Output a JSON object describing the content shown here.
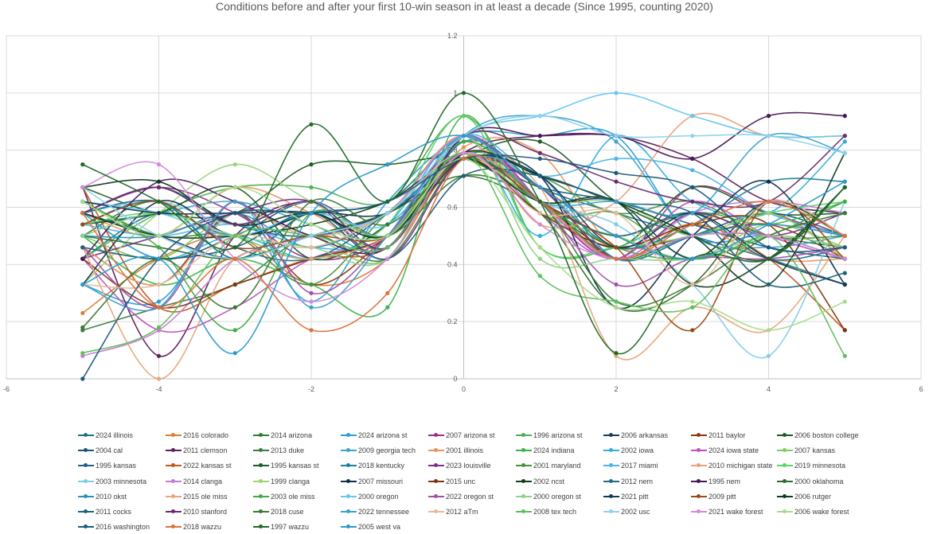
{
  "chart_data": {
    "type": "line",
    "title": "Conditions before and after your first 10-win season in at least a decade (Since 1995, counting 2020)",
    "xlabel": "",
    "ylabel": "",
    "xlim": [
      -6,
      6
    ],
    "ylim": [
      0,
      1.2
    ],
    "x_ticks": [
      "-6",
      "-4",
      "-2",
      "0",
      "2",
      "4",
      "6"
    ],
    "y_ticks": [
      "0",
      "0.2",
      "0.4",
      "0.6",
      "0.8",
      "1",
      "1.2"
    ],
    "x": [
      -5,
      -4,
      -3,
      -2,
      -1,
      0,
      1,
      2,
      3,
      4,
      5
    ],
    "grid": true,
    "smooth": true,
    "legend_position": "bottom",
    "series": [
      {
        "name": "2024 illinois",
        "color": "#1f6f8b",
        "values": [
          0.42,
          0.58,
          0.5,
          0.58,
          0.62,
          0.83,
          0.67,
          0.58,
          0.5,
          0.42,
          0.33
        ]
      },
      {
        "name": "2016 colorado",
        "color": "#e07b39",
        "values": [
          0.23,
          0.42,
          0.5,
          0.33,
          0.42,
          0.79,
          0.67,
          0.5,
          0.42,
          0.58,
          0.42
        ]
      },
      {
        "name": "2014 arizona",
        "color": "#2e7d32",
        "values": [
          0.5,
          0.62,
          0.42,
          0.58,
          0.5,
          0.71,
          0.62,
          0.42,
          0.5,
          0.5,
          0.42
        ]
      },
      {
        "name": "2024 arizona st",
        "color": "#2a9fd6",
        "values": [
          0.33,
          0.27,
          0.58,
          0.27,
          0.62,
          0.85,
          0.85,
          0.85,
          0.5,
          0.5,
          0.42
        ]
      },
      {
        "name": "2007 arizona st",
        "color": "#9c2e8f",
        "values": [
          0.58,
          0.67,
          0.58,
          0.42,
          0.5,
          0.85,
          0.62,
          0.42,
          0.67,
          0.58,
          0.5
        ]
      },
      {
        "name": "1996 arizona st",
        "color": "#4caf50",
        "values": [
          0.42,
          0.58,
          0.67,
          0.67,
          0.62,
          0.92,
          0.58,
          0.58,
          0.42,
          0.5,
          0.46
        ]
      },
      {
        "name": "2006 arkansas",
        "color": "#1a3d5c",
        "values": [
          0.58,
          0.5,
          0.42,
          0.5,
          0.58,
          0.77,
          0.62,
          0.62,
          0.42,
          0.62,
          0.5
        ]
      },
      {
        "name": "2011 baylor",
        "color": "#8b3a0e",
        "values": [
          0.46,
          0.33,
          0.58,
          0.33,
          0.5,
          0.77,
          0.62,
          0.46,
          0.5,
          0.54,
          0.42
        ]
      },
      {
        "name": "2006 boston college",
        "color": "#1b5e20",
        "values": [
          0.67,
          0.58,
          0.58,
          0.75,
          0.75,
          0.77,
          0.62,
          0.46,
          0.67,
          0.58,
          0.58
        ]
      },
      {
        "name": "2004 cal",
        "color": "#155a75",
        "values": [
          0.58,
          0.42,
          0.5,
          0.62,
          0.5,
          0.77,
          0.67,
          0.42,
          0.5,
          0.58,
          0.5
        ]
      },
      {
        "name": "2011 clemson",
        "color": "#5e1f5a",
        "values": [
          0.67,
          0.08,
          0.5,
          0.62,
          0.5,
          0.79,
          0.85,
          0.85,
          0.77,
          0.62,
          0.58
        ]
      },
      {
        "name": "2013 duke",
        "color": "#3c7a3f",
        "values": [
          0.17,
          0.25,
          0.33,
          0.5,
          0.42,
          0.77,
          0.62,
          0.5,
          0.58,
          0.5,
          0.46
        ]
      },
      {
        "name": "2009 georgia tech",
        "color": "#3da3c9",
        "values": [
          0.54,
          0.58,
          0.62,
          0.54,
          0.46,
          0.85,
          0.92,
          0.83,
          0.5,
          0.46,
          0.5
        ]
      },
      {
        "name": "2001 illinois",
        "color": "#e8935a",
        "values": [
          0.58,
          0.5,
          0.67,
          0.58,
          0.46,
          0.81,
          0.79,
          0.46,
          0.54,
          0.42,
          0.42
        ]
      },
      {
        "name": "2024 indiana",
        "color": "#3bb54a",
        "values": [
          0.5,
          0.33,
          0.42,
          0.33,
          0.25,
          0.92,
          0.46,
          0.46,
          0.58,
          0.54,
          0.62
        ]
      },
      {
        "name": "2002 iowa",
        "color": "#2eaee0",
        "values": [
          0.58,
          0.42,
          0.5,
          0.42,
          0.54,
          0.85,
          0.5,
          0.85,
          0.62,
          0.58,
          0.83
        ]
      },
      {
        "name": "2024 iowa state",
        "color": "#c04fc0",
        "values": [
          0.42,
          0.17,
          0.25,
          0.42,
          0.5,
          0.79,
          0.58,
          0.42,
          0.62,
          0.5,
          0.42
        ]
      },
      {
        "name": "2007 kansas",
        "color": "#7cce5a",
        "values": [
          0.5,
          0.42,
          0.58,
          0.5,
          0.42,
          0.85,
          0.58,
          0.5,
          0.42,
          0.54,
          0.46
        ]
      },
      {
        "name": "1995 kansas",
        "color": "#20607e",
        "values": [
          0.58,
          0.67,
          0.54,
          0.5,
          0.58,
          0.77,
          0.67,
          0.62,
          0.54,
          0.46,
          0.42
        ]
      },
      {
        "name": "2022 kansas st",
        "color": "#c0591e",
        "values": [
          0.67,
          0.25,
          0.33,
          0.42,
          0.46,
          0.77,
          0.67,
          0.42,
          0.54,
          0.42,
          0.17
        ]
      },
      {
        "name": "1995 kansas st",
        "color": "#1e5a2a",
        "values": [
          0.54,
          0.58,
          0.67,
          0.42,
          0.54,
          0.77,
          0.83,
          0.62,
          0.5,
          0.42,
          0.67
        ]
      },
      {
        "name": "2018 kentucky",
        "color": "#1b7f9c",
        "values": [
          0.54,
          0.62,
          0.42,
          0.58,
          0.46,
          0.83,
          0.67,
          0.46,
          0.54,
          0.69,
          0.69
        ]
      },
      {
        "name": "2023 louisville",
        "color": "#7a2f8a",
        "values": [
          0.42,
          0.5,
          0.58,
          0.62,
          0.42,
          0.77,
          0.67,
          0.42,
          0.58,
          0.5,
          0.58
        ]
      },
      {
        "name": "2001 maryland",
        "color": "#4a8f3a",
        "values": [
          0.62,
          0.5,
          0.5,
          0.33,
          0.58,
          0.79,
          0.71,
          0.58,
          0.62,
          0.5,
          0.5
        ]
      },
      {
        "name": "2017 miami",
        "color": "#4db2e6",
        "values": [
          0.54,
          0.5,
          0.54,
          0.46,
          0.5,
          0.85,
          0.71,
          0.77,
          0.73,
          0.58,
          0.5
        ]
      },
      {
        "name": "2010 michigan state",
        "color": "#e9a07a",
        "values": [
          0.46,
          0.33,
          0.58,
          0.5,
          0.58,
          0.85,
          0.54,
          0.62,
          0.92,
          0.85,
          0.85
        ]
      },
      {
        "name": "2019 minnesota",
        "color": "#5fd16a",
        "values": [
          0.54,
          0.58,
          0.5,
          0.42,
          0.54,
          0.92,
          0.46,
          0.46,
          0.5,
          0.58,
          0.62
        ]
      },
      {
        "name": "2003 minnesota",
        "color": "#7fcde8",
        "values": [
          0.58,
          0.62,
          0.54,
          0.62,
          0.5,
          0.79,
          0.62,
          0.54,
          0.33,
          0.08,
          0.62
        ]
      },
      {
        "name": "2014 clanga",
        "color": "#c77bd1",
        "values": [
          0.08,
          0.17,
          0.42,
          0.5,
          0.58,
          0.85,
          0.62,
          0.42,
          0.58,
          0.62,
          0.58
        ]
      },
      {
        "name": "1999 clanga",
        "color": "#9ad47a",
        "values": [
          0.33,
          0.58,
          0.75,
          0.62,
          0.5,
          0.77,
          0.62,
          0.62,
          0.5,
          0.58,
          0.42
        ]
      },
      {
        "name": "2007 missouri",
        "color": "#0f2f4a",
        "values": [
          0.33,
          0.62,
          0.5,
          0.58,
          0.58,
          0.77,
          0.71,
          0.25,
          0.5,
          0.69,
          0.33
        ]
      },
      {
        "name": "2015 unc",
        "color": "#7a3510",
        "values": [
          0.42,
          0.25,
          0.33,
          0.42,
          0.5,
          0.77,
          0.58,
          0.46,
          0.54,
          0.54,
          0.17
        ]
      },
      {
        "name": "2002 ncst",
        "color": "#123d1a",
        "values": [
          0.58,
          0.5,
          0.5,
          0.54,
          0.62,
          0.77,
          0.62,
          0.62,
          0.33,
          0.42,
          0.67
        ]
      },
      {
        "name": "2012 nem",
        "color": "#236b85",
        "values": [
          0.58,
          0.62,
          0.46,
          0.42,
          0.58,
          0.79,
          0.62,
          0.5,
          0.58,
          0.42,
          0.46
        ]
      },
      {
        "name": "1995 nem",
        "color": "#4a1559",
        "values": [
          0.42,
          0.69,
          0.62,
          0.5,
          0.46,
          0.85,
          0.85,
          0.85,
          0.77,
          0.92,
          0.92
        ]
      },
      {
        "name": "2000 oklahoma",
        "color": "#2f6b2f",
        "values": [
          0.5,
          0.46,
          0.42,
          0.5,
          0.58,
          0.71,
          0.58,
          0.25,
          0.33,
          0.62,
          0.5
        ]
      },
      {
        "name": "2010 okst",
        "color": "#2b8cbe",
        "values": [
          0.5,
          0.5,
          0.58,
          0.46,
          0.58,
          0.77,
          0.71,
          0.42,
          0.5,
          0.54,
          0.5
        ]
      },
      {
        "name": "2015 ole miss",
        "color": "#e6a57a",
        "values": [
          0.46,
          0.0,
          0.42,
          0.42,
          0.5,
          0.79,
          0.67,
          0.08,
          0.25,
          0.17,
          0.5
        ]
      },
      {
        "name": "2003 ole miss",
        "color": "#44aa44",
        "values": [
          0.62,
          0.46,
          0.17,
          0.58,
          0.5,
          0.83,
          0.62,
          0.46,
          0.42,
          0.5,
          0.62
        ]
      },
      {
        "name": "2000 oregon",
        "color": "#66c7ee",
        "values": [
          0.62,
          0.58,
          0.5,
          0.58,
          0.54,
          0.85,
          0.92,
          1.0,
          0.92,
          0.85,
          0.85
        ]
      },
      {
        "name": "2022 oregon st",
        "color": "#a24fa8",
        "values": [
          0.46,
          0.25,
          0.62,
          0.3,
          0.5,
          0.85,
          0.62,
          0.33,
          0.42,
          0.42,
          0.46
        ]
      },
      {
        "name": "2000 oregon st",
        "color": "#8fd08a",
        "values": [
          0.5,
          0.58,
          0.5,
          0.46,
          0.42,
          0.85,
          0.42,
          0.42,
          0.42,
          0.5,
          0.46
        ]
      },
      {
        "name": "2021 pitt",
        "color": "#163a54",
        "values": [
          0.62,
          0.58,
          0.58,
          0.58,
          0.5,
          0.77,
          0.71,
          0.46,
          0.58,
          0.42,
          0.33
        ]
      },
      {
        "name": "2009 pitt",
        "color": "#9a4a1a",
        "values": [
          0.54,
          0.62,
          0.46,
          0.5,
          0.5,
          0.77,
          0.62,
          0.46,
          0.17,
          0.62,
          0.42
        ]
      },
      {
        "name": "2006 rutger",
        "color": "#0e3b20",
        "values": [
          0.67,
          0.69,
          0.54,
          0.58,
          0.5,
          0.79,
          0.71,
          0.62,
          0.5,
          0.33,
          0.79
        ]
      },
      {
        "name": "2011 cocks",
        "color": "#1f5f7a",
        "values": [
          0.46,
          0.42,
          0.46,
          0.58,
          0.42,
          0.71,
          0.71,
          0.62,
          0.58,
          0.33,
          0.37
        ]
      },
      {
        "name": "2010 stanford",
        "color": "#6b2a6e",
        "values": [
          0.58,
          0.67,
          0.54,
          0.62,
          0.46,
          0.85,
          0.79,
          0.69,
          0.62,
          0.62,
          0.85
        ]
      },
      {
        "name": "2018 cuse",
        "color": "#3a7a35",
        "values": [
          0.18,
          0.42,
          0.25,
          0.62,
          0.54,
          0.77,
          0.62,
          0.27,
          0.33,
          0.5,
          0.58
        ]
      },
      {
        "name": "2022 tennessee",
        "color": "#3aa0cc",
        "values": [
          0.33,
          0.25,
          0.62,
          0.25,
          0.5,
          0.85,
          0.62,
          0.62,
          0.58,
          0.85,
          0.79
        ]
      },
      {
        "name": "2012 aTm",
        "color": "#e8b99a",
        "values": [
          0.33,
          0.33,
          0.5,
          0.46,
          0.58,
          0.79,
          0.58,
          0.58,
          0.33,
          0.62,
          0.5
        ]
      },
      {
        "name": "2008 tex tech",
        "color": "#5cbf5c",
        "values": [
          0.09,
          0.18,
          0.5,
          0.5,
          0.46,
          0.79,
          0.36,
          0.27,
          0.25,
          0.5,
          0.08
        ]
      },
      {
        "name": "2002 usc",
        "color": "#8cd2ef",
        "values": [
          0.67,
          0.5,
          0.42,
          0.5,
          0.58,
          0.85,
          0.92,
          0.85,
          0.85,
          0.85,
          0.79
        ]
      },
      {
        "name": "2021 wake forest",
        "color": "#d48bd8",
        "values": [
          0.67,
          0.75,
          0.42,
          0.27,
          0.42,
          0.79,
          0.54,
          0.42,
          0.5,
          0.5,
          0.42
        ]
      },
      {
        "name": "2006 wake forest",
        "color": "#a8dc8c",
        "values": [
          0.62,
          0.5,
          0.67,
          0.54,
          0.5,
          0.77,
          0.46,
          0.25,
          0.27,
          0.17,
          0.27
        ]
      },
      {
        "name": "2016 washington",
        "color": "#1d5a7a",
        "values": [
          0.0,
          0.42,
          0.58,
          0.58,
          0.62,
          0.77,
          0.77,
          0.72,
          0.67,
          0.46,
          0.46
        ]
      },
      {
        "name": "2018 wazzu",
        "color": "#d9733a",
        "values": [
          0.58,
          0.25,
          0.42,
          0.17,
          0.3,
          0.77,
          0.62,
          0.42,
          0.54,
          0.62,
          0.5
        ]
      },
      {
        "name": "1997 wazzu",
        "color": "#1f6b26",
        "values": [
          0.75,
          0.62,
          0.46,
          0.89,
          0.62,
          1.0,
          0.62,
          0.09,
          0.42,
          0.42,
          0.67
        ]
      },
      {
        "name": "2005 west va",
        "color": "#2c9acb",
        "values": [
          0.33,
          0.42,
          0.09,
          0.58,
          0.75,
          0.85,
          0.67,
          0.5,
          0.42,
          0.54,
          0.69
        ]
      }
    ]
  }
}
